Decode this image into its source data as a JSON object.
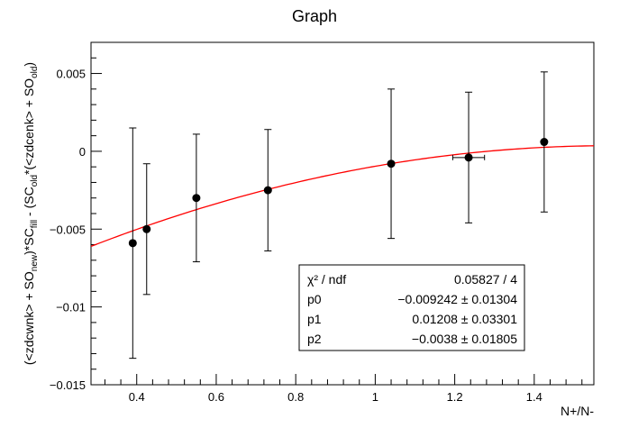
{
  "chart_data": {
    "type": "scatter",
    "title": "Graph",
    "xlabel": "N+/N-",
    "ylabel": {
      "parts": [
        "(<zdcwnk> + SO",
        "new",
        ")*SC",
        "fill",
        " - (SC",
        "old",
        "*(<zdcenk> + SO",
        "old",
        ")"
      ]
    },
    "xlim": [
      0.285,
      1.55
    ],
    "ylim": [
      -0.015,
      0.007
    ],
    "x_ticks": [
      {
        "value": 0.4,
        "label": "0.4"
      },
      {
        "value": 0.6,
        "label": "0.6"
      },
      {
        "value": 0.8,
        "label": "0.8"
      },
      {
        "value": 1.0,
        "label": "1"
      },
      {
        "value": 1.2,
        "label": "1.2"
      },
      {
        "value": 1.4,
        "label": "1.4"
      }
    ],
    "y_ticks": [
      {
        "value": -0.015,
        "label": "−0.015"
      },
      {
        "value": -0.01,
        "label": "−0.01"
      },
      {
        "value": -0.005,
        "label": "−0.005"
      },
      {
        "value": 0.0,
        "label": "0"
      },
      {
        "value": 0.005,
        "label": "0.005"
      }
    ],
    "points": [
      {
        "x": 0.39,
        "y": -0.0059,
        "ey": 0.0074,
        "ex": 0.0
      },
      {
        "x": 0.425,
        "y": -0.005,
        "ey": 0.0042,
        "ex": 0.0
      },
      {
        "x": 0.55,
        "y": -0.003,
        "ey": 0.0041,
        "ex": 0.0
      },
      {
        "x": 0.73,
        "y": -0.0025,
        "ey": 0.0039,
        "ex": 0.0
      },
      {
        "x": 1.04,
        "y": -0.0008,
        "ey": 0.0048,
        "ex": 0.0
      },
      {
        "x": 1.235,
        "y": -0.0004,
        "ey": 0.0042,
        "ex": 0.04
      },
      {
        "x": 1.425,
        "y": 0.0006,
        "ey": 0.0045,
        "ex": 0.0
      }
    ],
    "fit": {
      "function": "pol2",
      "color": "#ff0000",
      "p0": -0.009242,
      "p1": 0.01208,
      "p2": -0.0038,
      "x_range": [
        0.285,
        1.55
      ]
    },
    "stats_box": {
      "rows": [
        {
          "label": "χ² / ndf",
          "value": "0.05827 / 4"
        },
        {
          "label": "p0",
          "value": "−0.009242 ± 0.01304"
        },
        {
          "label": "p1",
          "value": "0.01208 ± 0.03301"
        },
        {
          "label": "p2",
          "value": "−0.0038 ± 0.01805"
        }
      ]
    },
    "grid": false,
    "marker_color": "#000000"
  }
}
